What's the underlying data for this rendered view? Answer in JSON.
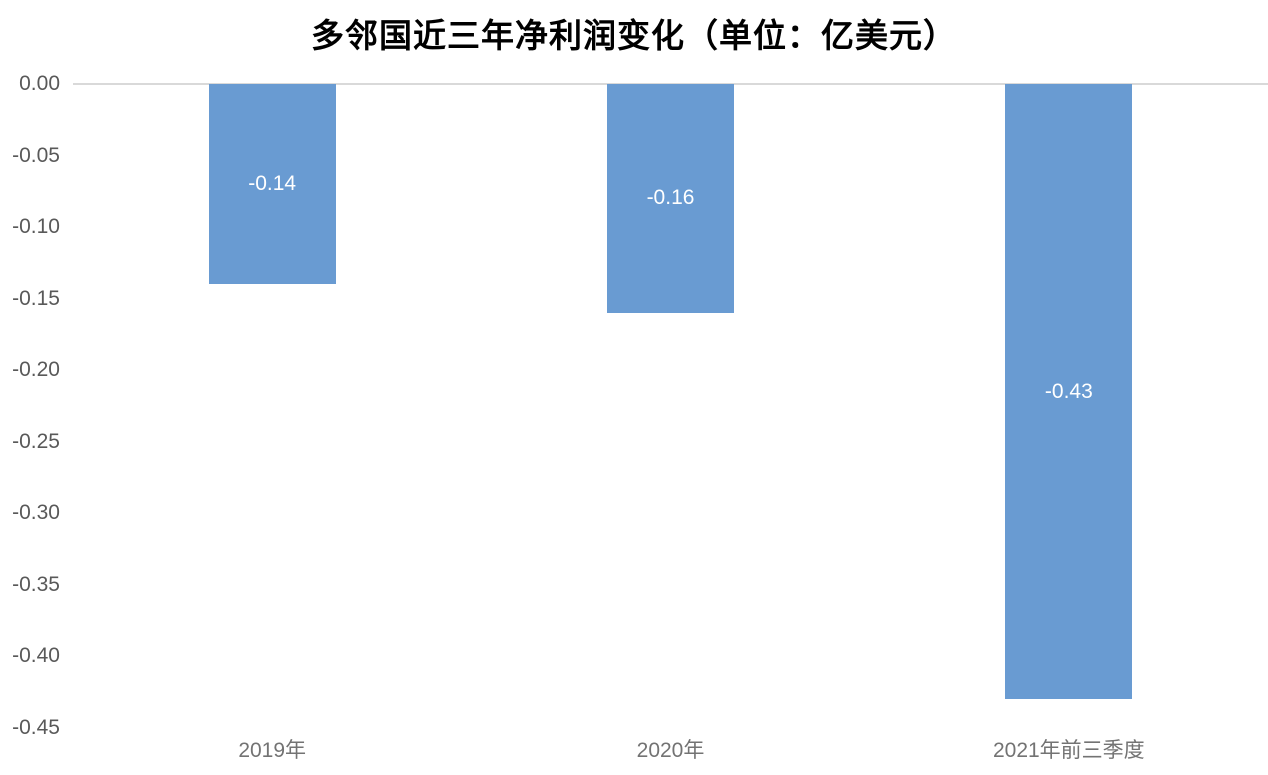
{
  "title": "多邻国近三年净利润变化（单位：亿美元）",
  "chart_data": {
    "type": "bar",
    "title": "多邻国近三年净利润变化（单位：亿美元）",
    "categories": [
      "2019年",
      "2020年",
      "2021年前三季度"
    ],
    "values": [
      -0.14,
      -0.16,
      -0.43
    ],
    "data_labels": [
      "-0.14",
      "-0.16",
      "-0.43"
    ],
    "xlabel": "",
    "ylabel": "",
    "ylim": [
      -0.45,
      0
    ],
    "y_ticks": [
      0,
      -0.05,
      -0.1,
      -0.15,
      -0.2,
      -0.25,
      -0.3,
      -0.35,
      -0.4,
      -0.45
    ],
    "y_tick_labels": [
      "0.00",
      "-0.05",
      "-0.10",
      "-0.15",
      "-0.20",
      "-0.25",
      "-0.30",
      "-0.35",
      "-0.40",
      "-0.45"
    ],
    "grid": "zero-line-only",
    "legend": "none",
    "orientation": "vertical-negative",
    "colors": {
      "bar": "#699BD2",
      "bar_label_text": "#FFFFFF",
      "zero_gridline": "#D9D9D9",
      "y_tick_text": "#595959",
      "x_label_text": "#737373",
      "title_text": "#000000",
      "background": "#FFFFFF"
    }
  }
}
